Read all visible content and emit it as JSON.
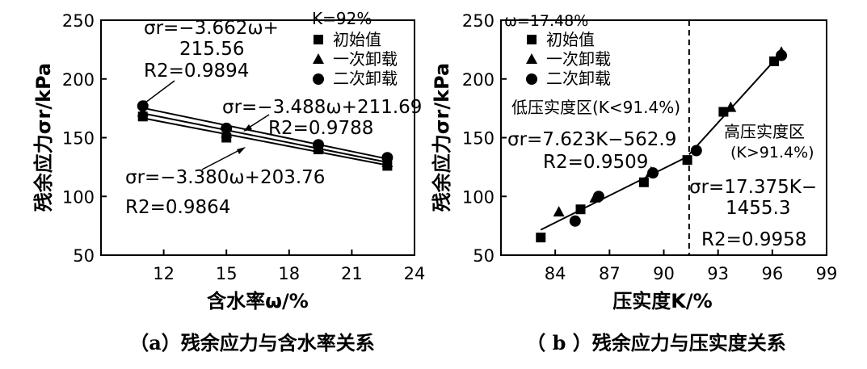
{
  "chart_data": [
    {
      "type": "scatter",
      "xlabel": "含水率ω/%",
      "ylabel": "残余应力σr/kPa",
      "xlim": [
        9,
        24
      ],
      "ylim": [
        50,
        250
      ],
      "xticks": [
        "12",
        "15",
        "18",
        "21",
        "24"
      ],
      "yticks": [
        "50",
        "100",
        "150",
        "200",
        "250"
      ],
      "condition": "K=92%",
      "legend": [
        "初始值",
        "一次卸载",
        "二次卸载"
      ],
      "legend_placement": "top-right",
      "grid": false,
      "series": [
        {
          "name": "初始值",
          "marker": "square",
          "x": [
            11,
            15,
            19.4,
            22.7
          ],
          "y": [
            168,
            150,
            140,
            126
          ]
        },
        {
          "name": "一次卸载",
          "marker": "triangle",
          "x": [
            11,
            15,
            19.4,
            22.7
          ],
          "y": [
            172,
            154,
            142,
            129
          ]
        },
        {
          "name": "二次卸载",
          "marker": "circle",
          "x": [
            11,
            15,
            19.4,
            22.7
          ],
          "y": [
            177,
            158,
            144,
            133
          ]
        }
      ],
      "fits": [
        {
          "series": "初始值",
          "eq_line1": "σr=−3.380ω+203.76",
          "r2": "R2=0.9864"
        },
        {
          "series": "一次卸载",
          "eq_line1": "σr=−3.488ω+211.69",
          "r2": "R2=0.9788"
        },
        {
          "series": "二次卸载",
          "eq_line1": "σr=−3.662ω+",
          "eq_line2": "215.56",
          "r2": "R2=0.9894"
        }
      ],
      "caption": "（a）残余应力与含水率关系"
    },
    {
      "type": "scatter",
      "xlabel": "压实度K/%",
      "ylabel": "残余应力σr/kPa",
      "xlim": [
        81,
        99
      ],
      "ylim": [
        50,
        250
      ],
      "xticks": [
        "84",
        "87",
        "90",
        "93",
        "96",
        "99"
      ],
      "yticks": [
        "50",
        "100",
        "150",
        "200",
        "250"
      ],
      "condition": "ω=17.48%",
      "legend": [
        "初始值",
        "一次卸载",
        "二次卸载"
      ],
      "legend_placement": "top-left",
      "grid": false,
      "threshold_K": 91.4,
      "series": [
        {
          "name": "初始值",
          "marker": "square",
          "x": [
            83.2,
            85.4,
            88.9,
            91.3,
            93.3,
            96.1
          ],
          "y": [
            65,
            89,
            112,
            131,
            172,
            215
          ]
        },
        {
          "name": "一次卸载",
          "marker": "triangle",
          "x": [
            84.2,
            86.2,
            89.3,
            93.7,
            96.5
          ],
          "y": [
            87,
            99,
            121,
            176,
            223
          ]
        },
        {
          "name": "二次卸载",
          "marker": "circle",
          "x": [
            85.1,
            86.4,
            89.4,
            91.8,
            96.5
          ],
          "y": [
            79,
            100,
            120,
            139,
            220
          ]
        }
      ],
      "regions": [
        {
          "label": "低压实度区(K<91.4%)",
          "fit_line1": "σr=7.623K−562.9",
          "r2": "R2=0.9509"
        },
        {
          "label_line1": "高压实度区",
          "label_line2": "(K>91.4%)",
          "fit_line1": "σr=17.375K−",
          "fit_line2": "1455.3",
          "r2": "R2=0.9958"
        }
      ],
      "caption": "（ b ）残余应力与压实度关系"
    }
  ]
}
